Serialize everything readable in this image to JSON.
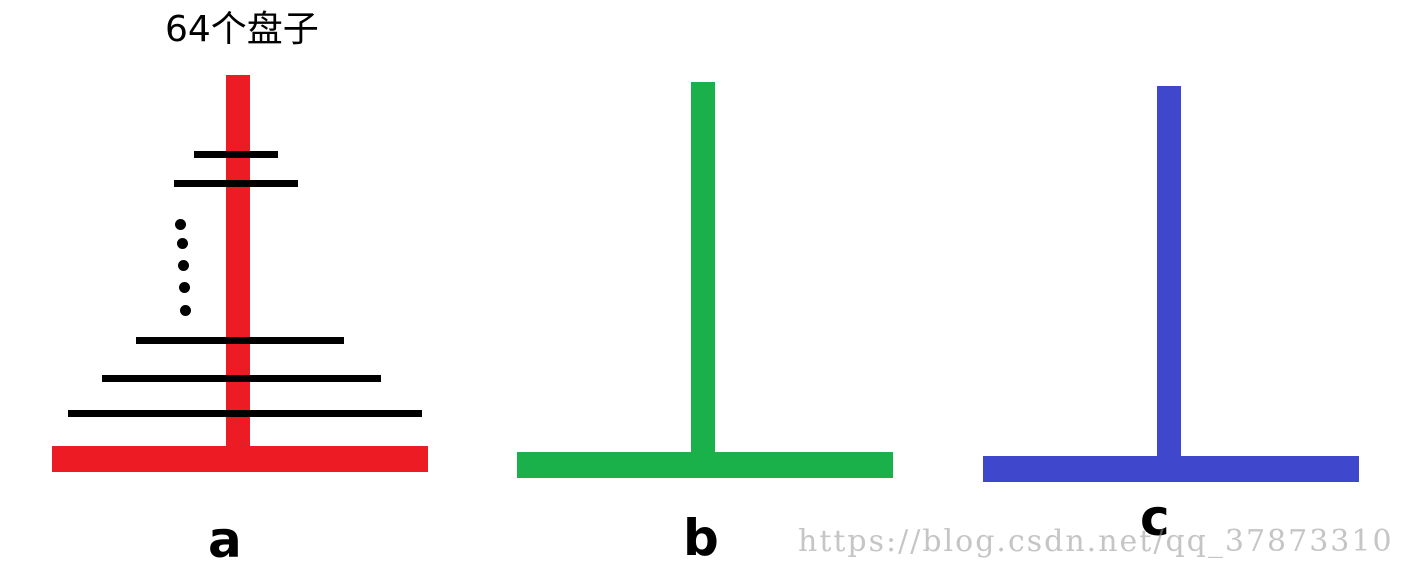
{
  "title": "64个盘子",
  "pegs": [
    {
      "label": "a",
      "color": "#ed1c24"
    },
    {
      "label": "b",
      "color": "#1ab04a"
    },
    {
      "label": "c",
      "color": "#3f48cc"
    }
  ],
  "disk_color": "#000000",
  "watermark": "https://blog.csdn.net/qq_37873310"
}
